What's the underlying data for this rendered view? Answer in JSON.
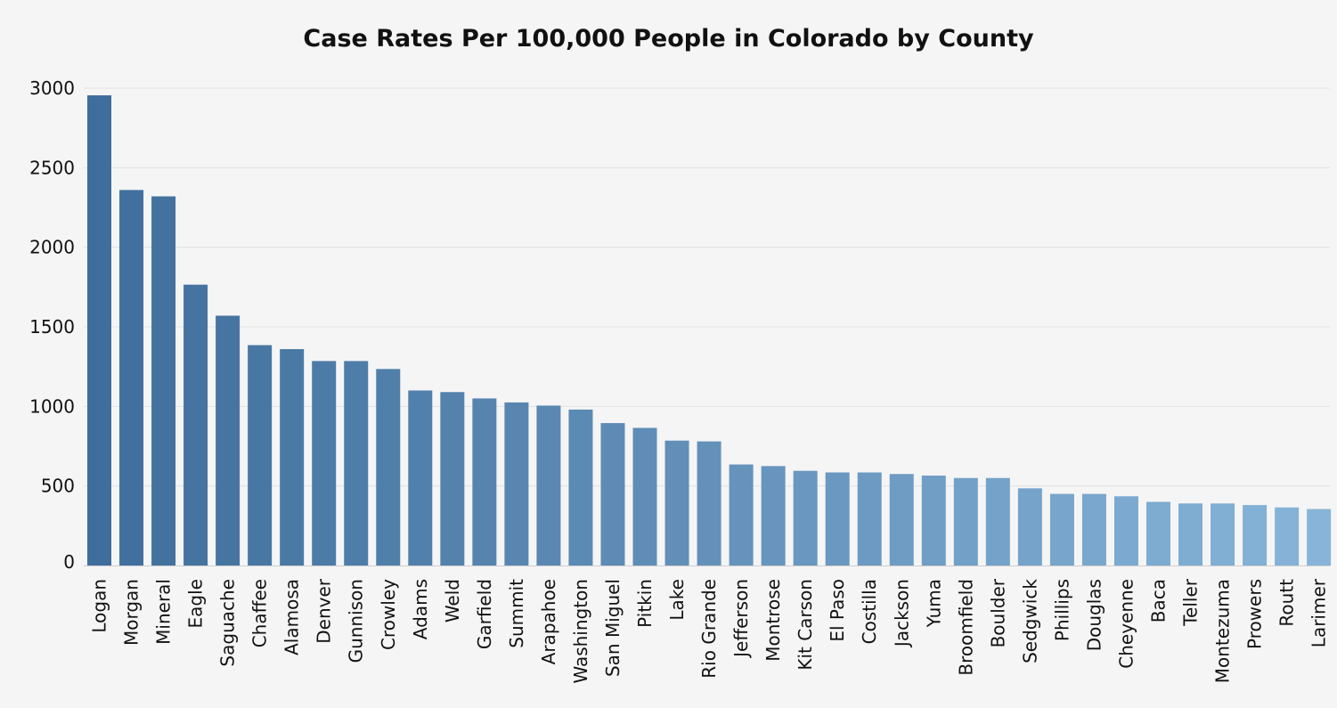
{
  "chart_data": {
    "type": "bar",
    "title": "Case Rates Per 100,000 People in Colorado by County",
    "xlabel": "",
    "ylabel": "",
    "ylim": [
      0,
      3000
    ],
    "yticks": [
      0,
      500,
      1000,
      1500,
      2000,
      2500,
      3000
    ],
    "grid": true,
    "legend": "none",
    "categories": [
      "Logan",
      "Morgan",
      "Mineral",
      "Eagle",
      "Saguache",
      "Chaffee",
      "Alamosa",
      "Denver",
      "Gunnison",
      "Crowley",
      "Adams",
      "Weld",
      "Garfield",
      "Summit",
      "Arapahoe",
      "Washington",
      "San Miguel",
      "Pitkin",
      "Lake",
      "Rio Grande",
      "Jefferson",
      "Montrose",
      "Kit Carson",
      "El Paso",
      "Costilla",
      "Jackson",
      "Yuma",
      "Broomfield",
      "Boulder",
      "Sedgwick",
      "Phillips",
      "Douglas",
      "Cheyenne",
      "Baca",
      "Teller",
      "Montezuma",
      "Prowers",
      "Routt",
      "Larimer"
    ],
    "values": [
      2955,
      2360,
      2320,
      1765,
      1570,
      1385,
      1360,
      1285,
      1285,
      1235,
      1100,
      1090,
      1050,
      1025,
      1005,
      980,
      895,
      865,
      785,
      780,
      635,
      625,
      595,
      585,
      585,
      575,
      565,
      550,
      550,
      485,
      450,
      450,
      435,
      400,
      390,
      390,
      380,
      365,
      355
    ],
    "bar_color_start": "#3f6e9c",
    "bar_color_end": "#87b4d8"
  }
}
